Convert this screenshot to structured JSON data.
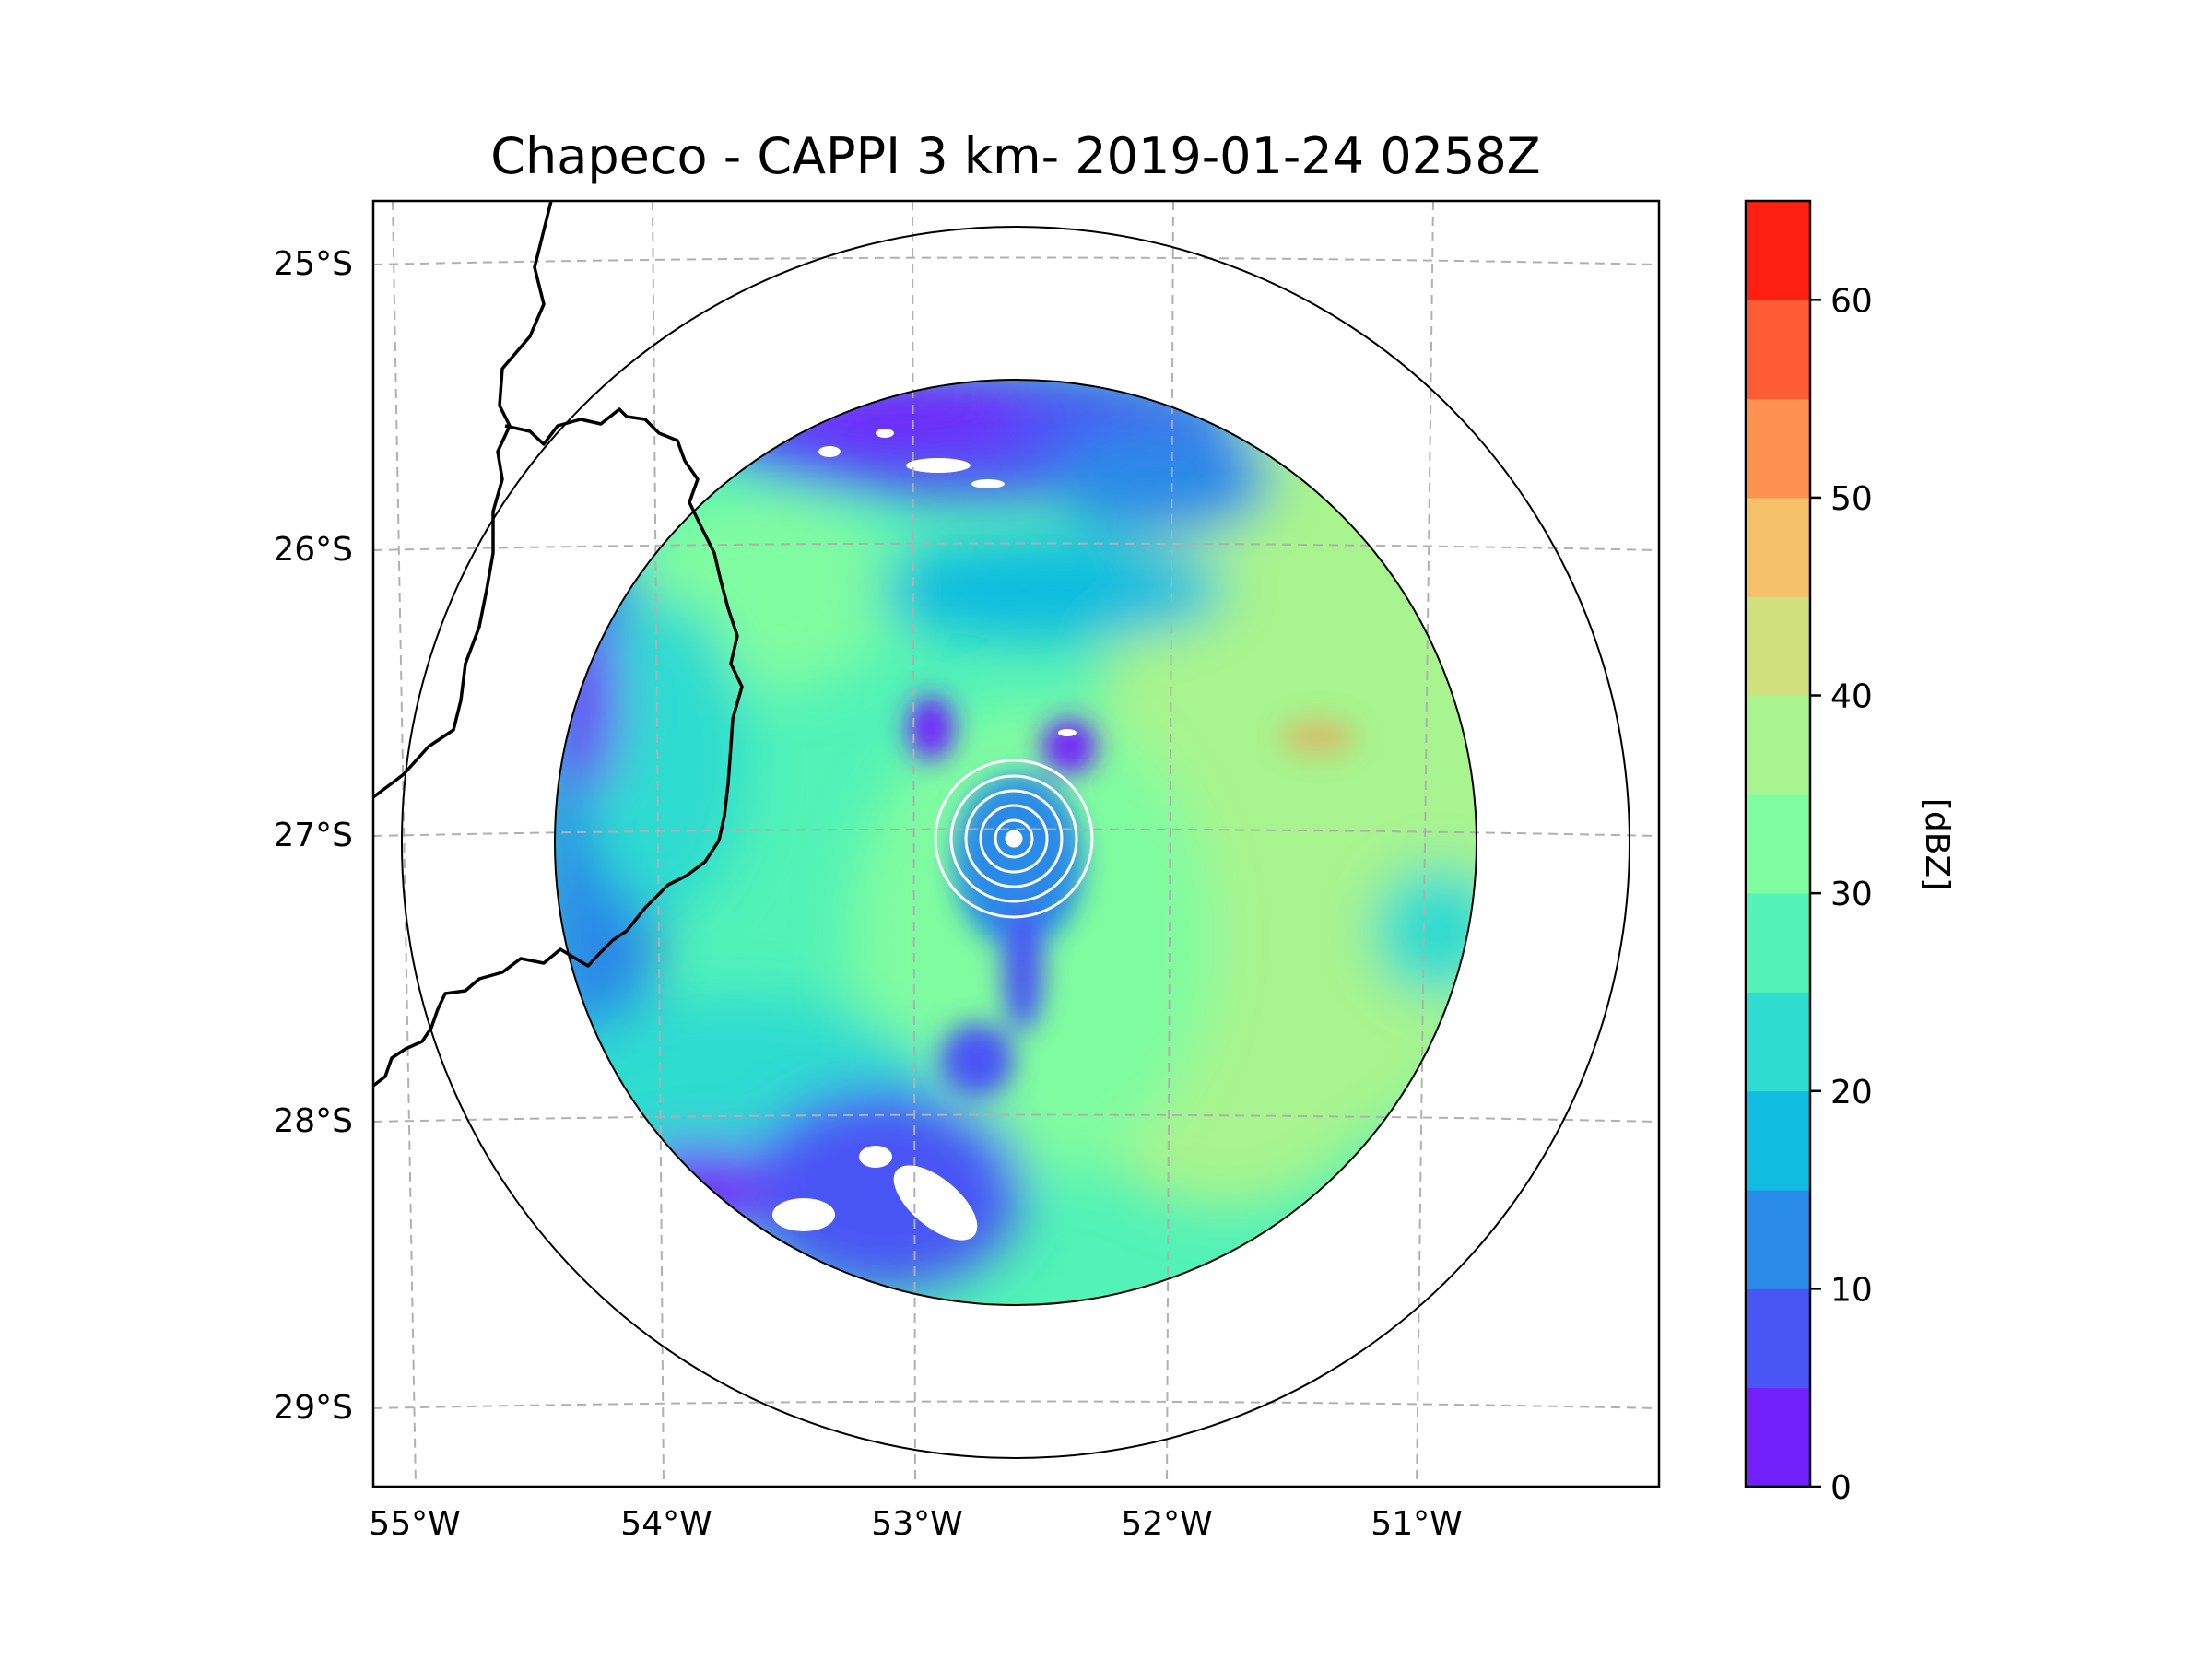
{
  "title": "Chapeco - CAPPI 3 km- 2019-01-24 0258Z",
  "map": {
    "lon_labels": [
      "55°W",
      "54°W",
      "53°W",
      "52°W",
      "51°W"
    ],
    "lat_labels": [
      "25°S",
      "26°S",
      "27°S",
      "28°S",
      "29°S"
    ],
    "gridline_color": "#b0b0b0",
    "range_ring_color": "#000000"
  },
  "colorbar": {
    "label": "[dBZ]",
    "min": 0,
    "max": 65,
    "step": 5,
    "ticks": [
      "0",
      "10",
      "20",
      "30",
      "40",
      "50",
      "60"
    ],
    "tick_values": [
      0,
      10,
      20,
      30,
      40,
      50,
      60
    ],
    "colors": [
      "#7120fb",
      "#4a55f5",
      "#2a8ae8",
      "#10bce0",
      "#2edcd0",
      "#52f2b8",
      "#80fca0",
      "#a8f48e",
      "#d0e07c",
      "#f4c06a",
      "#fe9050",
      "#fe5c34",
      "#fd2012"
    ]
  },
  "radar": {
    "site": "Chapeco",
    "product": "CAPPI 3 km",
    "colors": {
      "weak": "#7120fb",
      "light": "#4a55f5",
      "moderate": "#2a8ae8",
      "cyan": "#10bce0",
      "teal": "#2edcd0",
      "aqua": "#52f2b8",
      "mint": "#80fca0",
      "green": "#a8f48e",
      "orange": "#fe9050"
    }
  }
}
